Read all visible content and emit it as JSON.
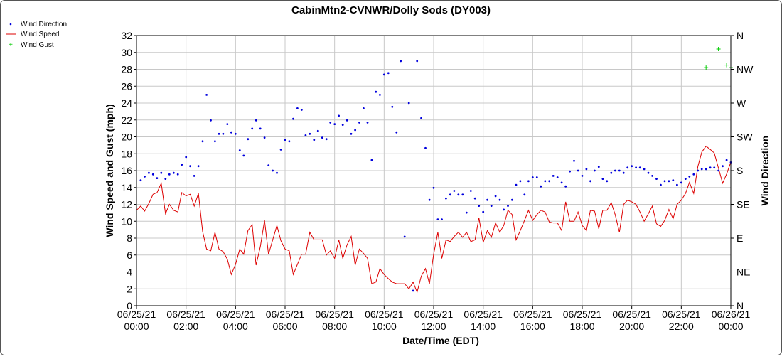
{
  "chart_data": {
    "type": "line",
    "title": "CabinMtn2-CVNWR/Dolly Sods (DY003)",
    "xlabel": "Date/Time (EDT)",
    "ylabel": "Wind Speed and Gust (mph)",
    "y2label": "Wind Direction",
    "grid": true,
    "legend_position": "top-left, outside plot",
    "xlim_hours": [
      0,
      24
    ],
    "ylim": [
      0,
      32
    ],
    "y2lim_degrees": [
      0,
      360
    ],
    "x_ticks": [
      {
        "date": "06/25/21",
        "time": "00:00"
      },
      {
        "date": "06/25/21",
        "time": "02:00"
      },
      {
        "date": "06/25/21",
        "time": "04:00"
      },
      {
        "date": "06/25/21",
        "time": "06:00"
      },
      {
        "date": "06/25/21",
        "time": "08:00"
      },
      {
        "date": "06/25/21",
        "time": "10:00"
      },
      {
        "date": "06/25/21",
        "time": "12:00"
      },
      {
        "date": "06/25/21",
        "time": "14:00"
      },
      {
        "date": "06/25/21",
        "time": "16:00"
      },
      {
        "date": "06/25/21",
        "time": "18:00"
      },
      {
        "date": "06/25/21",
        "time": "20:00"
      },
      {
        "date": "06/25/21",
        "time": "22:00"
      },
      {
        "date": "06/26/21",
        "time": "00:00"
      }
    ],
    "y_ticks": [
      0,
      2,
      4,
      6,
      8,
      10,
      12,
      14,
      16,
      18,
      20,
      22,
      24,
      26,
      28,
      30,
      32
    ],
    "y2_ticks": [
      "N",
      "NE",
      "E",
      "SE",
      "S",
      "SW",
      "W",
      "NW",
      "N"
    ],
    "colors": {
      "wind_direction": "#0000dd",
      "wind_speed": "#dd0000",
      "wind_gust": "#00cc00",
      "grid": "#c8c8c8"
    },
    "series": [
      {
        "name": "Wind Speed",
        "marker": "line",
        "x": [
          0.0,
          0.17,
          0.33,
          0.5,
          0.67,
          0.83,
          1.0,
          1.17,
          1.33,
          1.5,
          1.67,
          1.83,
          2.0,
          2.17,
          2.33,
          2.5,
          2.67,
          2.83,
          3.0,
          3.17,
          3.33,
          3.5,
          3.67,
          3.83,
          4.0,
          4.17,
          4.33,
          4.5,
          4.67,
          4.83,
          5.0,
          5.17,
          5.33,
          5.5,
          5.67,
          5.83,
          6.0,
          6.17,
          6.33,
          6.5,
          6.67,
          6.83,
          7.0,
          7.17,
          7.33,
          7.5,
          7.67,
          7.83,
          8.0,
          8.17,
          8.33,
          8.5,
          8.67,
          8.83,
          9.0,
          9.17,
          9.33,
          9.5,
          9.67,
          9.83,
          10.0,
          10.17,
          10.33,
          10.5,
          10.67,
          10.83,
          11.0,
          11.17,
          11.33,
          11.5,
          11.67,
          11.83,
          12.0,
          12.17,
          12.33,
          12.5,
          12.67,
          12.83,
          13.0,
          13.17,
          13.33,
          13.5,
          13.67,
          13.83,
          14.0,
          14.17,
          14.33,
          14.5,
          14.67,
          14.83,
          15.0,
          15.17,
          15.33,
          15.5,
          15.67,
          15.83,
          16.0,
          16.17,
          16.33,
          16.5,
          16.67,
          16.83,
          17.0,
          17.17,
          17.33,
          17.5,
          17.67,
          17.83,
          18.0,
          18.17,
          18.33,
          18.5,
          18.67,
          18.83,
          19.0,
          19.17,
          19.33,
          19.5,
          19.67,
          19.83,
          20.0,
          20.17,
          20.33,
          20.5,
          20.67,
          20.83,
          21.0,
          21.17,
          21.33,
          21.5,
          21.67,
          21.83,
          22.0,
          22.17,
          22.33,
          22.5,
          22.67,
          22.83,
          23.0,
          23.17,
          23.33,
          23.5,
          23.67,
          23.83,
          24.0
        ],
        "y": [
          11.3,
          11.8,
          11.2,
          12.1,
          13.2,
          13.4,
          14.5,
          10.9,
          12.0,
          11.3,
          11.1,
          13.4,
          13.0,
          13.2,
          11.8,
          13.3,
          8.8,
          6.7,
          6.5,
          8.7,
          6.7,
          6.4,
          5.5,
          3.7,
          4.9,
          6.7,
          6.1,
          8.9,
          9.6,
          4.8,
          7.0,
          10.1,
          6.1,
          7.8,
          9.5,
          7.7,
          6.7,
          6.5,
          3.7,
          4.9,
          6.1,
          6.1,
          8.7,
          7.8,
          7.8,
          7.8,
          6.0,
          6.5,
          5.6,
          7.8,
          5.6,
          7.2,
          8.2,
          4.8,
          6.7,
          6.2,
          5.6,
          2.6,
          2.8,
          4.4,
          3.7,
          3.2,
          2.8,
          2.6,
          2.6,
          2.6,
          2.0,
          2.8,
          1.6,
          3.5,
          4.4,
          2.6,
          6.1,
          8.7,
          5.6,
          7.8,
          7.6,
          8.2,
          8.7,
          8.1,
          8.7,
          7.6,
          7.8,
          10.4,
          7.5,
          8.9,
          8.1,
          9.8,
          8.7,
          9.5,
          11.3,
          10.8,
          7.8,
          8.9,
          10.1,
          11.3,
          10.1,
          10.8,
          11.3,
          11.1,
          9.9,
          9.8,
          9.8,
          8.9,
          12.3,
          10.0,
          10.0,
          11.1,
          9.5,
          8.9,
          11.3,
          11.2,
          9.1,
          11.3,
          11.3,
          12.2,
          10.8,
          8.7,
          12.0,
          12.5,
          12.3,
          12.0,
          11.1,
          10.0,
          10.9,
          11.8,
          9.7,
          9.4,
          10.1,
          11.4,
          10.3,
          12.0,
          12.5,
          13.3,
          14.6,
          13.3,
          16.5,
          18.2,
          18.9,
          18.5,
          18.1,
          16.3,
          14.5,
          15.6,
          17.0
        ]
      },
      {
        "name": "Wind Direction",
        "marker": "dot",
        "axis": "right",
        "x": [
          0.17,
          0.33,
          0.5,
          0.67,
          0.83,
          1.0,
          1.17,
          1.33,
          1.5,
          1.67,
          1.83,
          2.0,
          2.17,
          2.33,
          2.5,
          2.67,
          2.83,
          3.0,
          3.17,
          3.33,
          3.5,
          3.67,
          3.83,
          4.0,
          4.17,
          4.33,
          4.5,
          4.67,
          4.83,
          5.0,
          5.17,
          5.33,
          5.5,
          5.67,
          5.83,
          6.0,
          6.17,
          6.33,
          6.5,
          6.67,
          6.83,
          7.0,
          7.17,
          7.33,
          7.5,
          7.67,
          7.83,
          8.0,
          8.17,
          8.33,
          8.5,
          8.67,
          8.83,
          9.0,
          9.17,
          9.33,
          9.5,
          9.67,
          9.83,
          10.0,
          10.17,
          10.33,
          10.5,
          10.67,
          10.83,
          11.0,
          11.17,
          11.33,
          11.5,
          11.67,
          11.83,
          12.0,
          12.17,
          12.33,
          12.5,
          12.67,
          12.83,
          13.0,
          13.17,
          13.33,
          13.5,
          13.67,
          13.83,
          14.0,
          14.17,
          14.33,
          14.5,
          14.67,
          14.83,
          15.0,
          15.17,
          15.33,
          15.5,
          15.67,
          15.83,
          16.0,
          16.17,
          16.33,
          16.5,
          16.67,
          16.83,
          17.0,
          17.17,
          17.33,
          17.5,
          17.67,
          17.83,
          18.0,
          18.17,
          18.33,
          18.5,
          18.67,
          18.83,
          19.0,
          19.17,
          19.33,
          19.5,
          19.67,
          19.83,
          20.0,
          20.17,
          20.33,
          20.5,
          20.67,
          20.83,
          21.0,
          21.17,
          21.33,
          21.5,
          21.67,
          21.83,
          22.0,
          22.17,
          22.33,
          22.5,
          22.67,
          22.83,
          23.0,
          23.17,
          23.33,
          23.5,
          23.67,
          23.83,
          24.0
        ],
        "y": [
          167,
          172,
          177,
          175,
          170,
          177,
          169,
          175,
          177,
          175,
          188,
          198,
          186,
          173,
          186,
          219,
          281,
          247,
          219,
          229,
          229,
          242,
          231,
          229,
          207,
          200,
          222,
          236,
          247,
          236,
          224,
          187,
          180,
          177,
          208,
          221,
          219,
          249,
          263,
          261,
          227,
          229,
          221,
          233,
          224,
          222,
          244,
          242,
          253,
          241,
          247,
          229,
          234,
          244,
          263,
          244,
          194,
          285,
          281,
          308,
          310,
          265,
          231,
          326,
          92,
          270,
          20,
          326,
          250,
          210,
          141,
          157,
          115,
          115,
          143,
          148,
          153,
          148,
          148,
          124,
          153,
          143,
          133,
          125,
          141,
          133,
          146,
          141,
          128,
          133,
          141,
          161,
          166,
          148,
          166,
          171,
          171,
          159,
          166,
          166,
          173,
          171,
          164,
          159,
          179,
          193,
          180,
          173,
          182,
          166,
          180,
          185,
          169,
          166,
          177,
          180,
          180,
          177,
          184,
          186,
          184,
          184,
          182,
          177,
          173,
          169,
          161,
          166,
          166,
          167,
          161,
          164,
          169,
          172,
          175,
          180,
          182,
          182,
          184,
          184,
          180,
          186,
          194,
          191
        ]
      },
      {
        "name": "Wind Gust",
        "marker": "plus",
        "x": [
          23.0,
          23.5,
          23.83,
          24.0
        ],
        "y": [
          28.2,
          30.4,
          28.5,
          28.2
        ]
      }
    ]
  }
}
